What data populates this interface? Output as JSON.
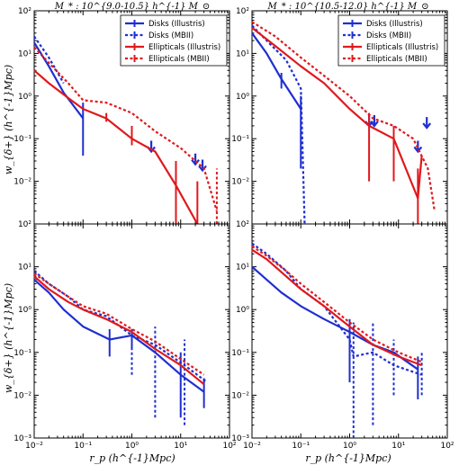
{
  "figure": {
    "col_titles": [
      "M_* : 10^{9.0-10.5} h^{-1} M_⊙",
      "M_* : 10^{10.5-12.0} h^{-1} M_⊙"
    ],
    "ylabel_top": "w_{δ+} (h^{-1}Mpc)",
    "ylabel_bottom": "w_{δ+} (h^{-1}Mpc)",
    "xlabel": "r_p (h^{-1}Mpc)",
    "xtick_labels": [
      "10⁻²",
      "10⁻¹",
      "10⁰",
      "10¹",
      "10²"
    ],
    "ytick_labels": [
      "10⁻³",
      "10⁻²",
      "10⁻¹",
      "10⁰",
      "10¹",
      "10²"
    ],
    "legend": [
      {
        "label": "Disks (Illustris)",
        "color": "#1f2fd0",
        "style": "solid"
      },
      {
        "label": "Disks (MBII)",
        "color": "#1f2fd0",
        "style": "dotted"
      },
      {
        "label": "Ellipticals (Illustris)",
        "color": "#e0191d",
        "style": "solid"
      },
      {
        "label": "Ellipticals (MBII)",
        "color": "#e0191d",
        "style": "dotted"
      }
    ]
  },
  "chart_data": [
    {
      "type": "line",
      "panel": "top-left",
      "title": "M_* : 10^{9.0-10.5} h^{-1} M_⊙",
      "xscale": "log",
      "yscale": "log",
      "xlim": [
        0.01,
        100
      ],
      "ylim": [
        0.001,
        100
      ],
      "legend_position": "top-right",
      "series": [
        {
          "name": "Disks (Illustris)",
          "color": "#1f2fd0",
          "style": "solid",
          "x": [
            0.01,
            0.02,
            0.04,
            0.1
          ],
          "y": [
            18,
            5,
            1.2,
            0.3
          ],
          "errorbars": [
            {
              "x": 0.1,
              "lo": 0.04,
              "hi": 0.7
            }
          ]
        },
        {
          "name": "Disks (MBII)",
          "color": "#1f2fd0",
          "style": "dotted",
          "x": [
            0.01,
            0.02,
            0.04
          ],
          "y": [
            25,
            8,
            2
          ],
          "upper_limits": [
            {
              "x": 2.5,
              "y": 0.05
            },
            {
              "x": 20,
              "y": 0.025
            },
            {
              "x": 28,
              "y": 0.018
            }
          ]
        },
        {
          "name": "Ellipticals (Illustris)",
          "color": "#e0191d",
          "style": "solid",
          "x": [
            0.01,
            0.02,
            0.05,
            0.1,
            0.3,
            1,
            3,
            8,
            22
          ],
          "y": [
            4,
            2,
            0.9,
            0.5,
            0.3,
            0.1,
            0.05,
            0.008,
            0.0008
          ],
          "errorbars": [
            {
              "x": 0.3,
              "lo": 0.25,
              "hi": 0.4
            },
            {
              "x": 1,
              "lo": 0.07,
              "hi": 0.2
            },
            {
              "x": 8,
              "lo": 0.001,
              "hi": 0.03
            },
            {
              "x": 22,
              "lo": 0.0006,
              "hi": 0.01
            }
          ]
        },
        {
          "name": "Ellipticals (MBII)",
          "color": "#e0191d",
          "style": "dotted",
          "x": [
            0.01,
            0.02,
            0.05,
            0.1,
            0.3,
            1,
            3,
            10,
            30,
            55
          ],
          "y": [
            14,
            6,
            2,
            0.8,
            0.7,
            0.4,
            0.15,
            0.06,
            0.02,
            0.002
          ],
          "errorbars": [
            {
              "x": 55,
              "lo": 0.001,
              "hi": 0.02
            }
          ]
        }
      ]
    },
    {
      "type": "line",
      "panel": "top-right",
      "title": "M_* : 10^{10.5-12.0} h^{-1} M_⊙",
      "xscale": "log",
      "yscale": "log",
      "xlim": [
        0.01,
        100
      ],
      "ylim": [
        0.001,
        100
      ],
      "legend_position": "top-right",
      "series": [
        {
          "name": "Disks (Illustris)",
          "color": "#1f2fd0",
          "style": "solid",
          "x": [
            0.01,
            0.02,
            0.04,
            0.1
          ],
          "y": [
            30,
            10,
            2.5,
            0.5
          ],
          "errorbars": [
            {
              "x": 0.04,
              "lo": 1.5,
              "hi": 3.5
            },
            {
              "x": 0.1,
              "lo": 0.02,
              "hi": 1.0
            }
          ]
        },
        {
          "name": "Disks (MBII)",
          "color": "#1f2fd0",
          "style": "dotted",
          "x": [
            0.01,
            0.02,
            0.05,
            0.1,
            0.12
          ],
          "y": [
            45,
            20,
            7,
            1.5,
            0.001
          ],
          "upper_limits": [
            {
              "x": 2.5,
              "y": 0.2
            },
            {
              "x": 3.2,
              "y": 0.2
            },
            {
              "x": 25,
              "y": 0.05
            },
            {
              "x": 38,
              "y": 0.18
            }
          ]
        },
        {
          "name": "Ellipticals (Illustris)",
          "color": "#e0191d",
          "style": "solid",
          "x": [
            0.01,
            0.03,
            0.1,
            0.3,
            1,
            2.5,
            8,
            25,
            30
          ],
          "y": [
            40,
            15,
            5,
            2,
            0.5,
            0.2,
            0.1,
            0.004,
            0.04
          ],
          "errorbars": [
            {
              "x": 2.5,
              "lo": 0.01,
              "hi": 0.4
            },
            {
              "x": 8,
              "lo": 0.01,
              "hi": 0.2
            },
            {
              "x": 25,
              "lo": 0.0008,
              "hi": 0.02
            }
          ]
        },
        {
          "name": "Ellipticals (MBII)",
          "color": "#e0191d",
          "style": "dotted",
          "x": [
            0.01,
            0.03,
            0.1,
            0.3,
            1,
            3,
            8,
            20,
            40,
            55
          ],
          "y": [
            55,
            25,
            8,
            3,
            1,
            0.3,
            0.2,
            0.1,
            0.02,
            0.002
          ]
        }
      ]
    },
    {
      "type": "line",
      "panel": "bottom-left",
      "xscale": "log",
      "yscale": "log",
      "xlim": [
        0.01,
        100
      ],
      "ylim": [
        0.001,
        100
      ],
      "series": [
        {
          "name": "Disks (Illustris)",
          "color": "#1f2fd0",
          "style": "solid",
          "x": [
            0.01,
            0.02,
            0.04,
            0.1,
            0.35,
            1,
            3,
            10,
            30
          ],
          "y": [
            5,
            2.5,
            1,
            0.4,
            0.2,
            0.25,
            0.1,
            0.03,
            0.012
          ],
          "errorbars": [
            {
              "x": 0.35,
              "lo": 0.08,
              "hi": 0.35
            },
            {
              "x": 1,
              "lo": 0.12,
              "hi": 0.35
            },
            {
              "x": 10,
              "lo": 0.003,
              "hi": 0.1
            },
            {
              "x": 30,
              "lo": 0.005,
              "hi": 0.025
            }
          ]
        },
        {
          "name": "Disks (MBII)",
          "color": "#1f2fd0",
          "style": "dotted",
          "x": [
            0.01,
            0.02,
            0.05,
            0.1,
            0.3,
            1,
            3,
            12,
            35
          ],
          "y": [
            8,
            4,
            2,
            1,
            0.7,
            0.25,
            0.15,
            0.05,
            0.02
          ],
          "errorbars": [
            {
              "x": 1,
              "lo": 0.03,
              "hi": 0.35
            },
            {
              "x": 3,
              "lo": 0.003,
              "hi": 0.4
            },
            {
              "x": 12,
              "lo": 0.002,
              "hi": 0.2
            }
          ]
        },
        {
          "name": "Ellipticals (Illustris)",
          "color": "#e0191d",
          "style": "solid",
          "x": [
            0.01,
            0.02,
            0.05,
            0.1,
            0.3,
            1,
            3,
            10,
            30
          ],
          "y": [
            6,
            3,
            1.5,
            1,
            0.6,
            0.3,
            0.12,
            0.05,
            0.018
          ]
        },
        {
          "name": "Ellipticals (MBII)",
          "color": "#e0191d",
          "style": "dotted",
          "x": [
            0.01,
            0.02,
            0.05,
            0.1,
            0.3,
            1,
            3,
            10,
            30
          ],
          "y": [
            7,
            4,
            2,
            1.2,
            0.8,
            0.35,
            0.18,
            0.07,
            0.03
          ]
        }
      ]
    },
    {
      "type": "line",
      "panel": "bottom-right",
      "xscale": "log",
      "yscale": "log",
      "xlim": [
        0.01,
        100
      ],
      "ylim": [
        0.001,
        100
      ],
      "series": [
        {
          "name": "Disks (Illustris)",
          "color": "#1f2fd0",
          "style": "solid",
          "x": [
            0.01,
            0.02,
            0.04,
            0.1,
            0.3,
            1,
            3,
            8,
            25
          ],
          "y": [
            10,
            5,
            2.5,
            1.2,
            0.6,
            0.3,
            0.15,
            0.1,
            0.04
          ],
          "errorbars": [
            {
              "x": 1,
              "lo": 0.02,
              "hi": 0.6
            },
            {
              "x": 25,
              "lo": 0.008,
              "hi": 0.08
            }
          ]
        },
        {
          "name": "Disks (MBII)",
          "color": "#1f2fd0",
          "style": "dotted",
          "x": [
            0.01,
            0.02,
            0.05,
            0.1,
            0.3,
            1,
            1.2,
            3,
            8,
            30
          ],
          "y": [
            35,
            20,
            8,
            3,
            1.2,
            0.2,
            0.08,
            0.1,
            0.05,
            0.03
          ],
          "errorbars": [
            {
              "x": 1.2,
              "lo": 0.001,
              "hi": 0.5
            },
            {
              "x": 3,
              "lo": 0.002,
              "hi": 0.5
            },
            {
              "x": 8,
              "lo": 0.01,
              "hi": 0.2
            },
            {
              "x": 30,
              "lo": 0.01,
              "hi": 0.1
            }
          ]
        },
        {
          "name": "Ellipticals (Illustris)",
          "color": "#e0191d",
          "style": "solid",
          "x": [
            0.01,
            0.02,
            0.05,
            0.1,
            0.3,
            1,
            3,
            10,
            30
          ],
          "y": [
            25,
            15,
            6,
            3,
            1.2,
            0.4,
            0.15,
            0.08,
            0.05
          ]
        },
        {
          "name": "Ellipticals (MBII)",
          "color": "#e0191d",
          "style": "dotted",
          "x": [
            0.01,
            0.02,
            0.05,
            0.1,
            0.3,
            1,
            3,
            10,
            30
          ],
          "y": [
            30,
            18,
            8,
            4,
            1.5,
            0.5,
            0.2,
            0.1,
            0.06
          ]
        }
      ]
    }
  ]
}
